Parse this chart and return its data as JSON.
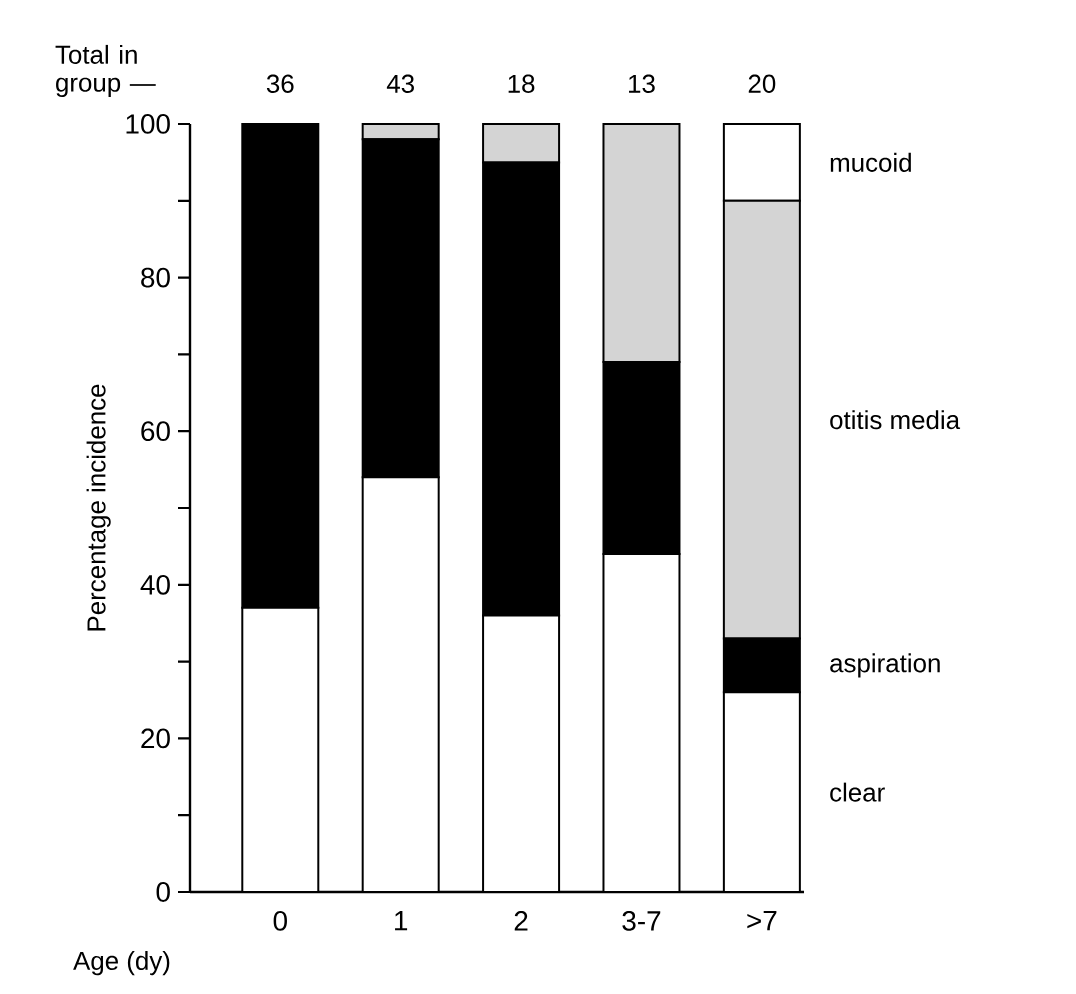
{
  "chart_data": {
    "type": "bar",
    "stacked": true,
    "ylabel": "Percentage incidence",
    "xlabel": "Age (dy)",
    "categories": [
      "0",
      "1",
      "2",
      "3-7",
      ">7"
    ],
    "series": [
      {
        "name": "clear",
        "color": "#ffffff",
        "values": [
          37,
          54,
          36,
          44,
          26
        ]
      },
      {
        "name": "aspiration",
        "color": "#000000",
        "values": [
          63,
          44,
          59,
          25,
          7
        ]
      },
      {
        "name": "otitis media",
        "color": "#d4d4d4",
        "values": [
          0,
          2,
          5,
          31,
          57
        ]
      },
      {
        "name": "mucoid",
        "color": "#ffffff",
        "values": [
          0,
          0,
          0,
          0,
          10
        ]
      }
    ],
    "ylim": [
      0,
      100
    ],
    "yticks": [
      0,
      {
        "value": 10,
        "label": null
      },
      20,
      {
        "value": 30,
        "label": null
      },
      40,
      {
        "value": 50,
        "label": null
      },
      60,
      {
        "value": 70,
        "label": null
      },
      80,
      {
        "value": 90,
        "label": null
      },
      100
    ],
    "annotations": [
      "Total in group —",
      {
        "text": "36",
        "x": "0",
        "y": 100
      },
      {
        "text": "43",
        "x": "1",
        "y": 100
      },
      {
        "text": "18",
        "x": "2",
        "y": 100
      },
      {
        "text": "13",
        "x": "3-7",
        "y": 100
      },
      {
        "text": "20",
        "x": ">7",
        "y": 100
      }
    ]
  }
}
